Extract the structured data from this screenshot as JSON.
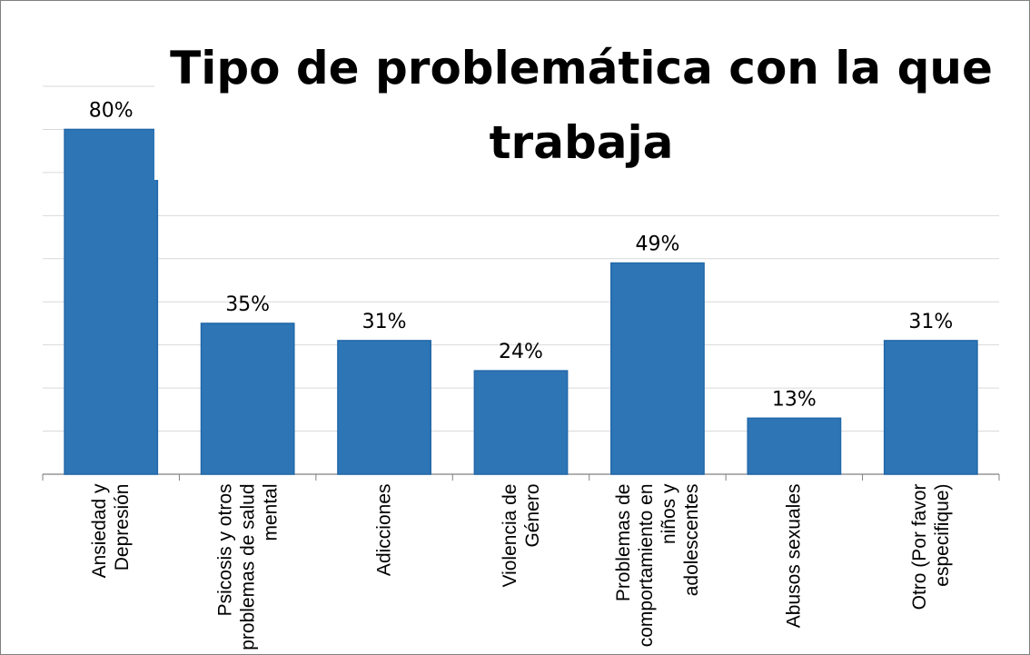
{
  "chart_data": {
    "type": "bar",
    "title": "Tipo de problemática con la que trabaja",
    "categories": [
      "Ansiedad y Depresión",
      "Psicosis y otros problemas de salud mental",
      "Adicciones",
      "Violencia de Género",
      "Problemas de comportamiento en niños y adolescentes",
      "Abusos sexuales",
      "Otro (Por favor especifique)"
    ],
    "values": [
      80,
      35,
      31,
      24,
      49,
      13,
      31
    ],
    "value_labels": [
      "80%",
      "35%",
      "31%",
      "24%",
      "49%",
      "13%",
      "31%"
    ],
    "color": "#2e75b6",
    "ylim": [
      0,
      90
    ],
    "yticks": [
      0,
      10,
      20,
      30,
      40,
      50,
      60,
      70,
      80,
      90
    ],
    "grid": true
  }
}
